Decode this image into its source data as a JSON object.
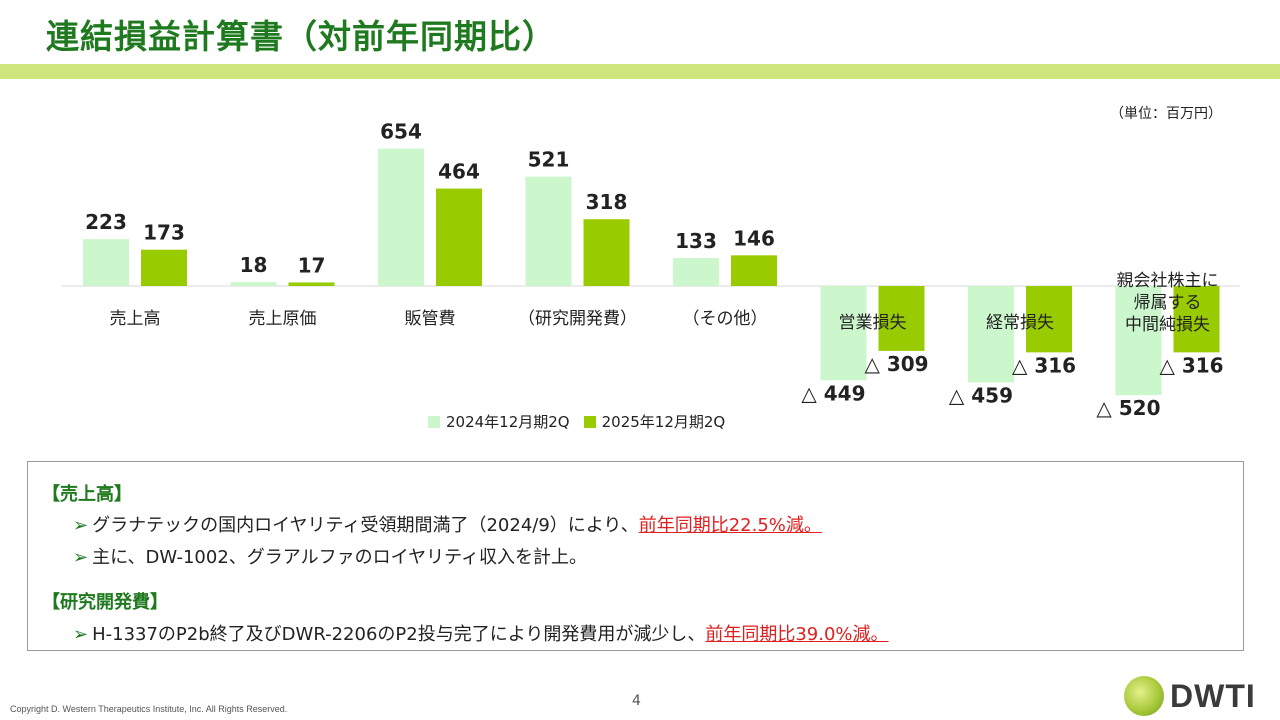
{
  "header": {
    "title": "連結損益計算書（対前年同期比）",
    "unit": "（単位：百万円）"
  },
  "chart_data": {
    "type": "bar",
    "categories": [
      "売上高",
      "売上原価",
      "販管費",
      "（研究開発費）",
      "（その他）",
      "営業損失",
      "経常損失",
      "親会社株主に帰属する中間純損失"
    ],
    "category_lines": [
      [
        "売上高"
      ],
      [
        "売上原価"
      ],
      [
        "販管費"
      ],
      [
        "（研究開発費）"
      ],
      [
        "（その他）"
      ],
      [
        "営業損失"
      ],
      [
        "経常損失"
      ],
      [
        "親会社株主に",
        "帰属する",
        "中間純損失"
      ]
    ],
    "series": [
      {
        "name": "2024年12月期2Q",
        "values": [
          223,
          18,
          654,
          521,
          133,
          -449,
          -459,
          -520
        ],
        "labels": [
          "223",
          "18",
          "654",
          "521",
          "133",
          "△ 449",
          "△ 459",
          "△ 520"
        ],
        "color": "#ccf7cc"
      },
      {
        "name": "2025年12月期2Q",
        "values": [
          173,
          17,
          464,
          318,
          146,
          -309,
          -316,
          -316
        ],
        "labels": [
          "173",
          "17",
          "464",
          "318",
          "146",
          "△ 309",
          "△ 316",
          "△ 316"
        ],
        "color": "#99cc00"
      }
    ]
  },
  "notes": {
    "sections": [
      {
        "heading": "【売上高】",
        "bullets": [
          {
            "text": "グラナテックの国内ロイヤリティ受領期間満了（2024/9）により、",
            "highlight": "前年同期比22.5%減。"
          },
          {
            "text": "主に、DW-1002、グラアルファのロイヤリティ収入を計上。",
            "highlight": ""
          }
        ]
      },
      {
        "heading": "【研究開発費】",
        "bullets": [
          {
            "text": "H-1337のP2b終了及びDWR-2206のP2投与完了により開発費用が減少し、",
            "highlight": "前年同期比39.0%減。"
          }
        ]
      }
    ]
  },
  "footer": {
    "copyright": "Copyright D. Western Therapeutics Institute, Inc. All Rights Reserved.",
    "page_number": "4",
    "logo_text": "DWTI"
  },
  "colors": {
    "title_green": "#1f7a1f",
    "rule": "#cfe67e",
    "bar_2024": "#ccf7cc",
    "bar_2025": "#99cc00",
    "highlight_red": "#e02020"
  }
}
